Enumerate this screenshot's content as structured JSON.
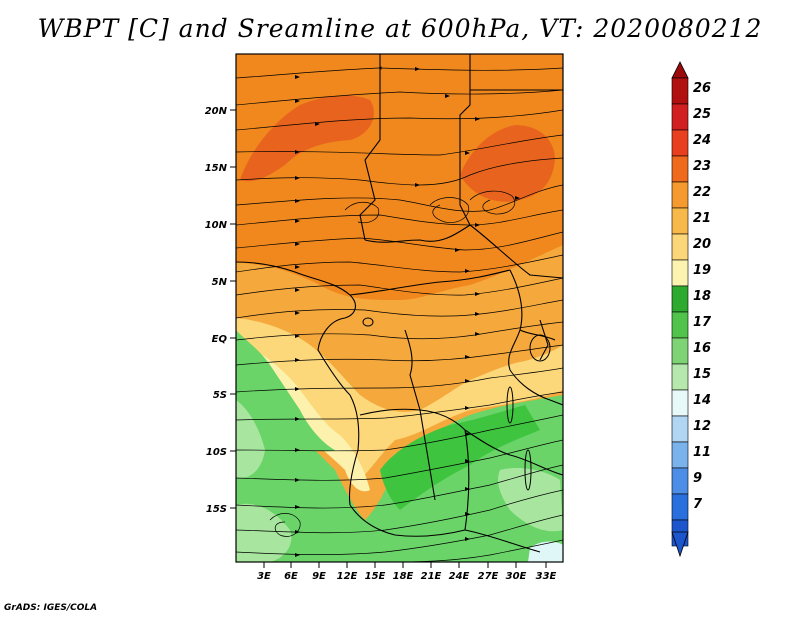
{
  "title": "WBPT [C] and Sreamline at 600hPa, VT: 2020080212",
  "credit": "GrADS: IGES/COLA",
  "map": {
    "lat_ticks": [
      "20N",
      "15N",
      "10N",
      "5N",
      "EQ",
      "5S",
      "10S",
      "15S"
    ],
    "lon_ticks": [
      "3E",
      "6E",
      "9E",
      "12E",
      "15E",
      "18E",
      "21E",
      "24E",
      "27E",
      "30E",
      "33E"
    ],
    "fill_regions": [
      {
        "level": "22-23",
        "color": "#e8641e"
      },
      {
        "level": "21-22",
        "color": "#f0881e"
      },
      {
        "level": "20-21",
        "color": "#f5a83c"
      },
      {
        "level": "19-20",
        "color": "#fcd87a"
      },
      {
        "level": "18-19",
        "color": "#fdf2ad"
      },
      {
        "level": "17-18",
        "color": "#3ec43e"
      },
      {
        "level": "16-17",
        "color": "#6ad468"
      },
      {
        "level": "15-16",
        "color": "#a8e6a0"
      },
      {
        "level": "14-15",
        "color": "#dff7f7"
      }
    ]
  },
  "colorbar": {
    "labels": [
      "26",
      "25",
      "24",
      "23",
      "22",
      "21",
      "20",
      "19",
      "18",
      "17",
      "16",
      "15",
      "14",
      "12",
      "11",
      "9",
      "7"
    ],
    "colors": [
      "#b01010",
      "#d22020",
      "#e8401e",
      "#f06a1e",
      "#f59a2e",
      "#f7b94a",
      "#fbd77a",
      "#fdf3b0",
      "#2eaa2e",
      "#50c44a",
      "#7ed474",
      "#b6e8ae",
      "#e8f9f9",
      "#b0d6f4",
      "#7ab2ec",
      "#4c8ee6",
      "#2a6fde",
      "#1c55cc"
    ]
  }
}
